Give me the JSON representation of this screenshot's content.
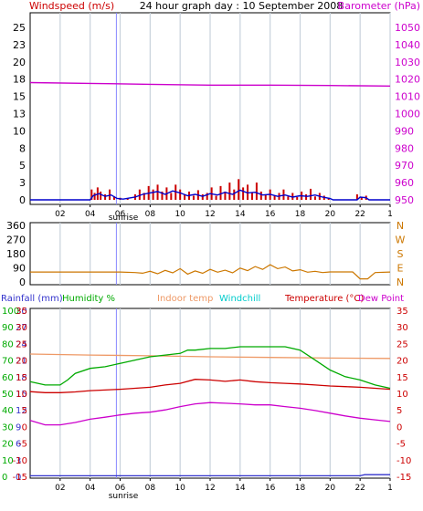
{
  "colors": {
    "windspeed_label": "#cc0000",
    "barometer_label": "#cc00cc",
    "wind_gust": "#cc0000",
    "wind_avg": "#0000cc",
    "barometer": "#cc00cc",
    "wind_dir": "#cc7700",
    "rainfall": "#3333cc",
    "humidity": "#00aa00",
    "indoor_temp": "#ee9966",
    "windchill": "#00cccc",
    "temperature": "#cc0000",
    "dew_point": "#cc00cc",
    "grid": "#c8d2dc",
    "axis": "#000000",
    "sunrise_line": "#8888ff"
  },
  "header": {
    "title": "24 hour graph day : 10 September 2008",
    "windspeed_label": "Windspeed (m/s)",
    "barometer_label": "Barometer (hPa)"
  },
  "sunrise_label": "sunrise",
  "chart_data": [
    {
      "type": "line",
      "name": "wind-barometer",
      "x_ticks": [
        "02",
        "04",
        "06",
        "08",
        "10",
        "12",
        "14",
        "16",
        "18",
        "20",
        "22",
        "1"
      ],
      "left_axis": {
        "label": "Windspeed (m/s)",
        "ticks": [
          "0",
          "3",
          "5",
          "8",
          "10",
          "13",
          "15",
          "18",
          "20",
          "23",
          "25"
        ],
        "ylim": [
          0,
          25
        ]
      },
      "right_axis": {
        "label": "Barometer (hPa)",
        "ticks": [
          "950",
          "960",
          "970",
          "980",
          "990",
          "1000",
          "1010",
          "1020",
          "1030",
          "1040",
          "1050"
        ],
        "ylim": [
          950,
          1050
        ]
      },
      "series": [
        {
          "name": "Barometer (hPa)",
          "axis": "right",
          "x": [
            0,
            4,
            8,
            12,
            16,
            20,
            24
          ],
          "y": [
            1018,
            1017.5,
            1017,
            1016.5,
            1016.5,
            1016.3,
            1016
          ]
        }
      ],
      "gust_bars": {
        "x": [
          4.1,
          4.3,
          4.5,
          4.7,
          5.0,
          5.3,
          5.6,
          6.0,
          6.5,
          7.0,
          7.3,
          7.6,
          7.9,
          8.2,
          8.5,
          8.8,
          9.1,
          9.4,
          9.7,
          10.0,
          10.3,
          10.6,
          10.9,
          11.2,
          11.5,
          11.8,
          12.1,
          12.4,
          12.7,
          13.0,
          13.3,
          13.6,
          13.9,
          14.2,
          14.5,
          14.8,
          15.1,
          15.4,
          15.7,
          16.0,
          16.3,
          16.6,
          16.9,
          17.2,
          17.5,
          17.8,
          18.1,
          18.4,
          18.7,
          19.0,
          19.3,
          19.6,
          19.9,
          21.8,
          22.1,
          22.4
        ],
        "y": [
          1.5,
          1.0,
          1.8,
          1.2,
          0.8,
          1.5,
          0.5,
          0.3,
          0.2,
          0.8,
          1.5,
          1.0,
          2.0,
          1.5,
          2.2,
          1.2,
          1.8,
          1.0,
          2.2,
          1.5,
          0.8,
          1.2,
          0.6,
          1.4,
          0.8,
          1.0,
          1.8,
          0.6,
          2.0,
          1.2,
          2.5,
          1.5,
          3.0,
          1.8,
          2.2,
          1.0,
          2.5,
          1.2,
          0.8,
          1.5,
          0.6,
          1.0,
          1.5,
          0.5,
          1.0,
          0.4,
          1.2,
          0.8,
          1.6,
          0.5,
          1.0,
          0.6,
          0.3,
          0.8,
          0.4,
          0.6
        ]
      },
      "avg_line": {
        "x": [
          0,
          4.0,
          4.2,
          4.6,
          5.0,
          5.4,
          5.8,
          6.2,
          7.0,
          7.5,
          8.0,
          8.5,
          9.0,
          9.5,
          10.0,
          10.5,
          11.0,
          11.5,
          12.0,
          12.5,
          13.0,
          13.5,
          14.0,
          14.5,
          15.0,
          15.5,
          16.0,
          16.5,
          17.0,
          17.5,
          18.0,
          18.5,
          19.0,
          19.5,
          20.0,
          20.2,
          21.8,
          22.0,
          22.4,
          22.6,
          24
        ],
        "y": [
          0,
          0,
          0.6,
          0.9,
          0.5,
          0.7,
          0.2,
          0.1,
          0.4,
          0.8,
          1.0,
          1.2,
          0.8,
          1.3,
          1.0,
          0.6,
          0.8,
          0.5,
          0.9,
          0.7,
          1.1,
          0.8,
          1.4,
          1.0,
          1.1,
          0.7,
          0.8,
          0.5,
          0.7,
          0.4,
          0.6,
          0.5,
          0.7,
          0.4,
          0.2,
          0,
          0,
          0.4,
          0.3,
          0,
          0
        ]
      }
    },
    {
      "type": "line",
      "name": "wind-direction",
      "x_ticks": [],
      "left_axis": {
        "ticks": [
          "0",
          "90",
          "180",
          "270",
          "360"
        ],
        "ylim": [
          0,
          360
        ]
      },
      "right_axis": {
        "ticks": [
          "N",
          "E",
          "S",
          "W",
          "N"
        ]
      },
      "series": [
        {
          "name": "Wind direction",
          "x": [
            0,
            2,
            4,
            5,
            6,
            7,
            7.5,
            8,
            8.5,
            9,
            9.5,
            10,
            10.5,
            11,
            11.5,
            12,
            12.5,
            13,
            13.5,
            14,
            14.5,
            15,
            15.5,
            16,
            16.5,
            17,
            17.5,
            18,
            18.5,
            19,
            19.5,
            20,
            21,
            21.5,
            22,
            22.5,
            23,
            24
          ],
          "y": [
            63,
            63,
            63,
            63,
            63,
            60,
            56,
            68,
            52,
            74,
            58,
            85,
            50,
            70,
            55,
            80,
            62,
            75,
            58,
            88,
            72,
            98,
            80,
            110,
            85,
            95,
            70,
            78,
            62,
            68,
            60,
            64,
            64,
            64,
            20,
            20,
            60,
            63
          ]
        }
      ]
    },
    {
      "type": "line",
      "name": "temperature-humidity",
      "x_ticks": [
        "02",
        "04",
        "06",
        "08",
        "10",
        "12",
        "14",
        "16",
        "18",
        "20",
        "22",
        "1"
      ],
      "header_labels": [
        "Rainfall (mm)",
        "Humidity %",
        "Indoor temp",
        "Windchill",
        "Temperature (°C)",
        "Dew Point"
      ],
      "rain_axis": {
        "ticks": [
          "0",
          "3",
          "6",
          "9",
          "12",
          "15",
          "18",
          "21",
          "24",
          "27",
          "30"
        ],
        "ylim": [
          0,
          30
        ]
      },
      "humidity_axis": {
        "ticks": [
          "0",
          "10",
          "20",
          "30",
          "40",
          "50",
          "60",
          "70",
          "80",
          "90",
          "100"
        ],
        "ylim": [
          0,
          100
        ]
      },
      "temp_axis": {
        "ticks": [
          "-15",
          "-10",
          "-5",
          "0",
          "5",
          "10",
          "15",
          "20",
          "25",
          "30",
          "35"
        ],
        "ylim": [
          -15,
          35
        ]
      },
      "series": [
        {
          "name": "Indoor temp",
          "axis": "temp",
          "x": [
            0,
            4,
            8,
            12,
            16,
            20,
            24
          ],
          "y": [
            21.8,
            21.5,
            21.3,
            21.0,
            20.8,
            20.6,
            20.5
          ]
        },
        {
          "name": "Humidity %",
          "axis": "humidity",
          "x": [
            0,
            1,
            2,
            2.5,
            3,
            4,
            5,
            6,
            7,
            8,
            9,
            10,
            10.5,
            11,
            12,
            13,
            14,
            15,
            16,
            17,
            18,
            19,
            20,
            21,
            22,
            23,
            24
          ],
          "y": [
            57,
            55,
            55,
            58,
            62,
            65,
            66,
            68,
            70,
            72,
            73,
            74,
            76,
            76,
            77,
            77,
            78,
            78,
            78,
            78,
            76,
            70,
            64,
            60,
            58,
            55,
            53
          ]
        },
        {
          "name": "Temperature (°C)",
          "axis": "temp",
          "x": [
            0,
            1,
            2,
            3,
            4,
            5,
            6,
            7,
            8,
            9,
            10,
            11,
            12,
            13,
            14,
            15,
            16,
            17,
            18,
            19,
            20,
            21,
            22,
            23,
            24
          ],
          "y": [
            10.5,
            10.2,
            10.2,
            10.4,
            10.8,
            11.0,
            11.2,
            11.5,
            11.8,
            12.5,
            13.0,
            14.2,
            14.0,
            13.6,
            14.0,
            13.5,
            13.2,
            13.0,
            12.8,
            12.5,
            12.2,
            12.0,
            11.8,
            11.5,
            11.2
          ]
        },
        {
          "name": "Dew Point",
          "axis": "temp",
          "x": [
            0,
            1,
            2,
            3,
            4,
            5,
            6,
            7,
            8,
            9,
            10,
            11,
            12,
            13,
            14,
            15,
            16,
            17,
            18,
            19,
            20,
            21,
            22,
            23,
            24
          ],
          "y": [
            1.8,
            0.5,
            0.5,
            1.2,
            2.2,
            2.8,
            3.5,
            4.0,
            4.3,
            5.0,
            6.0,
            6.8,
            7.2,
            7.0,
            6.8,
            6.5,
            6.5,
            6.0,
            5.5,
            4.8,
            4.0,
            3.2,
            2.5,
            2.0,
            1.5
          ]
        },
        {
          "name": "Rainfall (mm)",
          "axis": "rain",
          "x": [
            0,
            22,
            22.3,
            24
          ],
          "y": [
            0.1,
            0.1,
            0.3,
            0.3
          ]
        }
      ]
    }
  ]
}
